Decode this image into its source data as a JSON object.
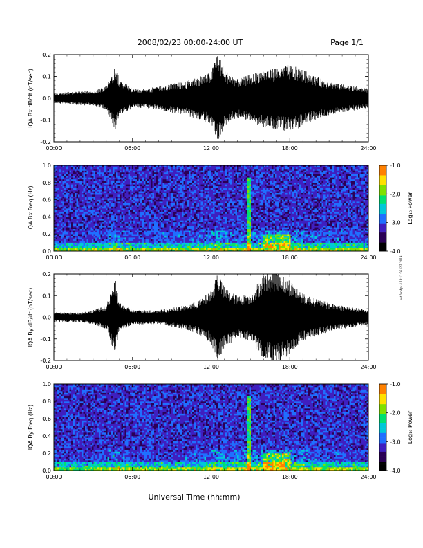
{
  "header": {
    "title": "2008/02/23  00:00-24:00 UT",
    "page_label": "Page 1/1"
  },
  "footer": {
    "xlabel": "Universal Time (hh:mm)",
    "side_note": "not for Apr 4 18:11:06 EST 2019"
  },
  "colors": {
    "trace": "#000000",
    "spectrogram_colormap": [
      "#000000",
      "#2a0055",
      "#3f1fbf",
      "#1f6fff",
      "#00c8d8",
      "#00e070",
      "#80e000",
      "#ffe000",
      "#ff8000",
      "#ff0000"
    ]
  },
  "chart_data": [
    {
      "type": "line",
      "id": "bx-dbdt",
      "ylabel": "IQA Bx dB/dt (nT/sec)",
      "xlim": [
        0,
        24
      ],
      "ylim": [
        -0.2,
        0.2
      ],
      "yticks": [
        "0.2",
        "0.1",
        "0.0",
        "-0.1",
        "-0.2"
      ],
      "xticks": [
        "00:00",
        "06:00",
        "12:00",
        "18:00",
        "24:00"
      ],
      "amplitude_envelope_hours": [
        0,
        1,
        2,
        3,
        4,
        4.7,
        5,
        6,
        7,
        8,
        9,
        10,
        11,
        12,
        12.5,
        13,
        14,
        15,
        16,
        17,
        18,
        19,
        20,
        21,
        22,
        23,
        24
      ],
      "amplitude_envelope_values": [
        0.02,
        0.025,
        0.03,
        0.03,
        0.05,
        0.14,
        0.08,
        0.04,
        0.04,
        0.05,
        0.06,
        0.07,
        0.09,
        0.11,
        0.2,
        0.12,
        0.08,
        0.1,
        0.12,
        0.13,
        0.14,
        0.12,
        0.09,
        0.07,
        0.06,
        0.05,
        0.04
      ]
    },
    {
      "type": "heatmap",
      "id": "bx-spectrogram",
      "ylabel": "IQA Bx Freq (Hz)",
      "xlim": [
        0,
        24
      ],
      "ylim": [
        0.0,
        1.0
      ],
      "yticks": [
        "1.0",
        "0.8",
        "0.6",
        "0.4",
        "0.2",
        "0.0"
      ],
      "xticks": [
        "00:00",
        "06:00",
        "12:00",
        "18:00",
        "24:00"
      ],
      "colorbar_label": "Log₁₀ Power",
      "colorbar_ticks": [
        "-1.0",
        "-2.0",
        "-3.0",
        "-4.0"
      ],
      "colorbar_range": [
        -4.0,
        -1.0
      ],
      "features": [
        {
          "label": "spike",
          "hour": 14.9,
          "freq_range": [
            0.0,
            0.85
          ]
        },
        {
          "label": "band",
          "hours": [
            16.0,
            18.0
          ],
          "freq_range": [
            0.05,
            0.2
          ]
        }
      ]
    },
    {
      "type": "line",
      "id": "by-dbdt",
      "ylabel": "IQA By dB/dt (nT/sec)",
      "xlim": [
        0,
        24
      ],
      "ylim": [
        -0.2,
        0.2
      ],
      "yticks": [
        "0.2",
        "0.1",
        "0.0",
        "-0.1",
        "-0.2"
      ],
      "xticks": [
        "00:00",
        "06:00",
        "12:00",
        "18:00",
        "24:00"
      ],
      "amplitude_envelope_hours": [
        0,
        1,
        2,
        3,
        4,
        4.7,
        5,
        6,
        7,
        8,
        9,
        10,
        11,
        12,
        12.5,
        13,
        14,
        15,
        16,
        17,
        18,
        19,
        20,
        21,
        22,
        23,
        24
      ],
      "amplitude_envelope_values": [
        0.02,
        0.02,
        0.02,
        0.03,
        0.05,
        0.16,
        0.06,
        0.03,
        0.03,
        0.03,
        0.04,
        0.05,
        0.07,
        0.11,
        0.2,
        0.13,
        0.09,
        0.1,
        0.18,
        0.2,
        0.16,
        0.1,
        0.08,
        0.06,
        0.05,
        0.04,
        0.03
      ]
    },
    {
      "type": "heatmap",
      "id": "by-spectrogram",
      "ylabel": "IQA By Freq (Hz)",
      "xlim": [
        0,
        24
      ],
      "ylim": [
        0.0,
        1.0
      ],
      "yticks": [
        "1.0",
        "0.8",
        "0.6",
        "0.4",
        "0.2",
        "0.0"
      ],
      "xticks": [
        "00:00",
        "06:00",
        "12:00",
        "18:00",
        "24:00"
      ],
      "colorbar_label": "Log₁₀ Power",
      "colorbar_ticks": [
        "-1.0",
        "-2.0",
        "-3.0",
        "-4.0"
      ],
      "colorbar_range": [
        -4.0,
        -1.0
      ],
      "features": [
        {
          "label": "spike",
          "hour": 14.9,
          "freq_range": [
            0.0,
            0.85
          ]
        },
        {
          "label": "band",
          "hours": [
            16.0,
            18.0
          ],
          "freq_range": [
            0.05,
            0.2
          ]
        }
      ]
    }
  ]
}
